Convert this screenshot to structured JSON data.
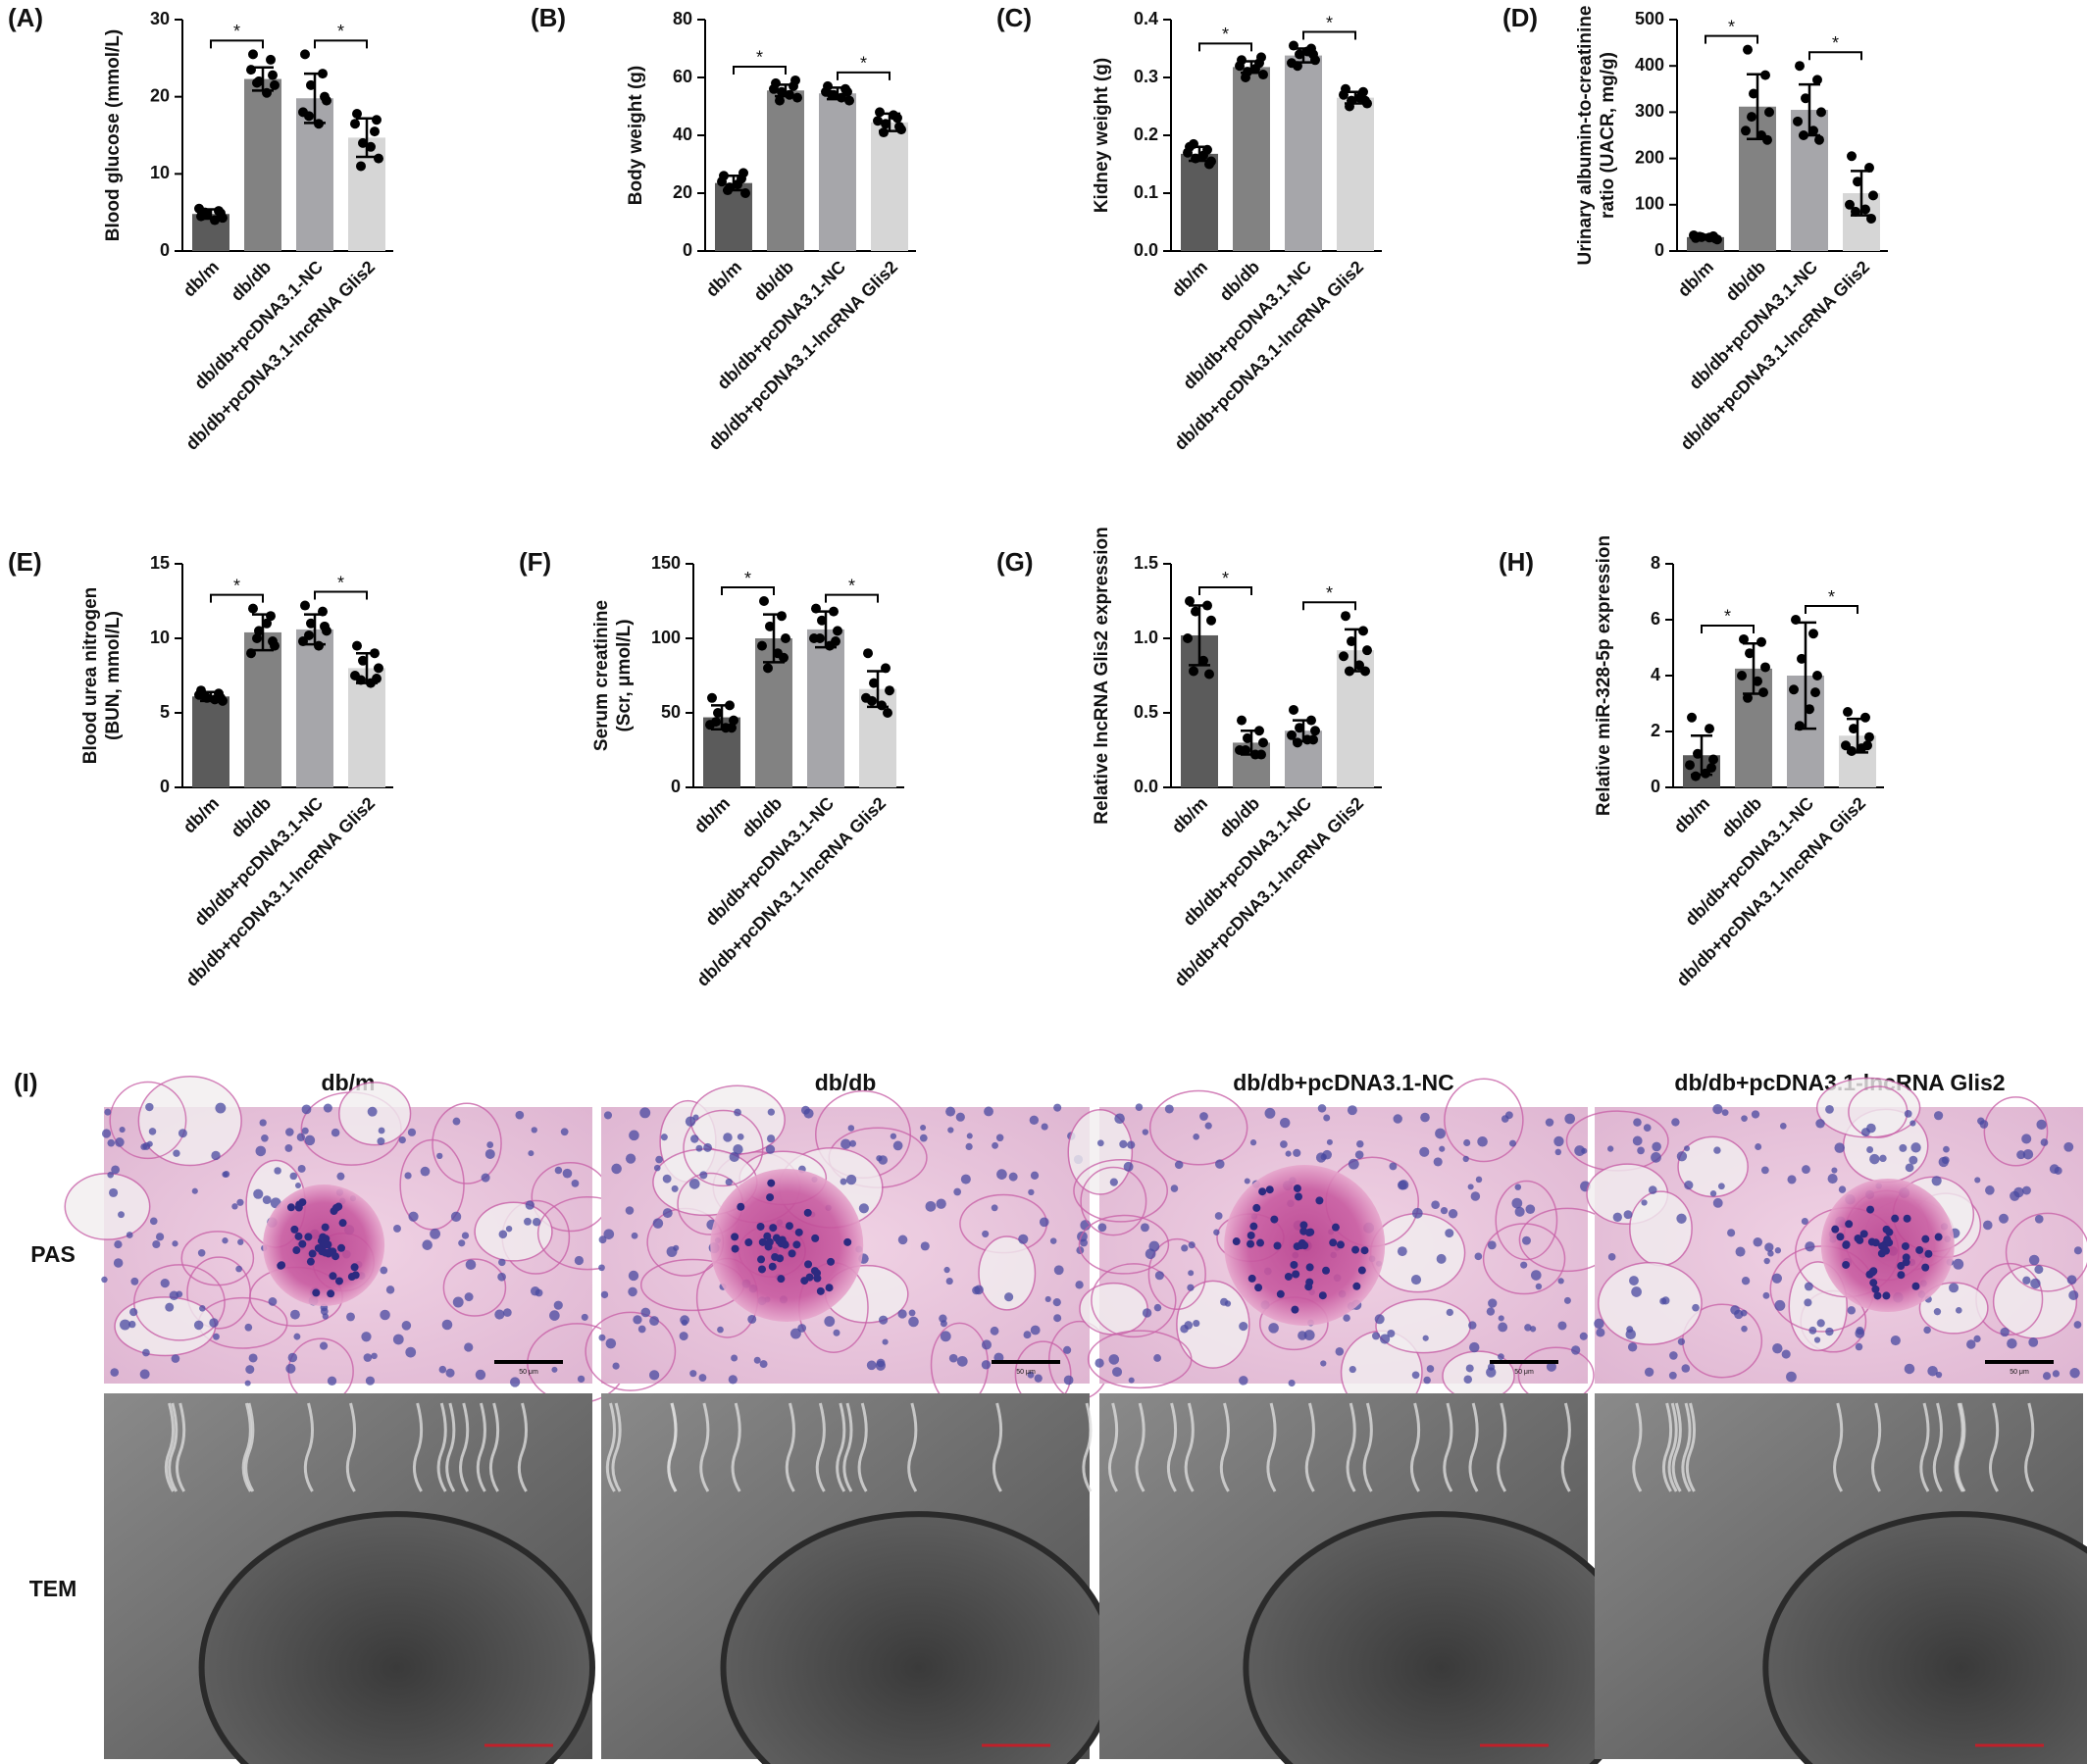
{
  "chart_data": [
    {
      "type": "bar",
      "panel": "(A)",
      "y_label": [
        "Blood glucose (mmol/L)"
      ],
      "categories": [
        "db/m",
        "db/db",
        "db/db+pcDNA3.1-NC",
        "db/db+pcDNA3.1-lncRNA Glis2"
      ],
      "colors": [
        "#5b5b5b",
        "#828282",
        "#a6a6aa",
        "#d6d6d6"
      ],
      "values": [
        4.8,
        22.3,
        19.8,
        14.7
      ],
      "errors": [
        0.6,
        1.5,
        3.2,
        2.5
      ],
      "points": [
        [
          4.5,
          5.2,
          4.8,
          4.3,
          5.5,
          4.0,
          5.0,
          4.9
        ],
        [
          25.5,
          24.8,
          22.0,
          21.5,
          23.5,
          20.5,
          21.8,
          22.8
        ],
        [
          25.5,
          23.0,
          21.5,
          19.5,
          18.0,
          16.5,
          17.5,
          20.0
        ],
        [
          17.8,
          15.5,
          14.0,
          12.0,
          16.5,
          13.5,
          11.0,
          17.0
        ]
      ],
      "significance": [
        "*",
        "*"
      ],
      "ylim": [
        0,
        30
      ],
      "yticks": [
        0,
        10,
        20,
        30
      ]
    },
    {
      "type": "bar",
      "panel": "(B)",
      "y_label": [
        "Body weight (g)"
      ],
      "categories": [
        "db/m",
        "db/db",
        "db/db+pcDNA3.1-NC",
        "db/db+pcDNA3.1-lncRNA Glis2"
      ],
      "colors": [
        "#5b5b5b",
        "#828282",
        "#a6a6aa",
        "#d6d6d6"
      ],
      "values": [
        23.5,
        55.5,
        54.5,
        44.5
      ],
      "errors": [
        2.5,
        2,
        2,
        3
      ],
      "points": [
        [
          26,
          25,
          22,
          20,
          24,
          23,
          21,
          27
        ],
        [
          58,
          57,
          55,
          53,
          56,
          54,
          52,
          59
        ],
        [
          57,
          56,
          54,
          52,
          55,
          53,
          54,
          55
        ],
        [
          48,
          46,
          44,
          42,
          45,
          47,
          41,
          43
        ]
      ],
      "significance": [
        "*",
        "*"
      ],
      "ylim": [
        0,
        80
      ],
      "yticks": [
        0,
        20,
        40,
        60,
        80
      ]
    },
    {
      "type": "bar",
      "panel": "(C)",
      "y_label": [
        "Kidney weight (g)"
      ],
      "categories": [
        "db/m",
        "db/db",
        "db/db+pcDNA3.1-NC",
        "db/db+pcDNA3.1-lncRNA Glis2"
      ],
      "colors": [
        "#5b5b5b",
        "#828282",
        "#a6a6aa",
        "#d6d6d6"
      ],
      "values": [
        0.168,
        0.318,
        0.338,
        0.265
      ],
      "errors": [
        0.012,
        0.01,
        0.012,
        0.01
      ],
      "points": [
        [
          0.18,
          0.175,
          0.16,
          0.155,
          0.17,
          0.165,
          0.185,
          0.15
        ],
        [
          0.33,
          0.325,
          0.31,
          0.305,
          0.32,
          0.315,
          0.3,
          0.335
        ],
        [
          0.355,
          0.35,
          0.34,
          0.33,
          0.325,
          0.345,
          0.32,
          0.34
        ],
        [
          0.28,
          0.275,
          0.26,
          0.255,
          0.27,
          0.265,
          0.25,
          0.26
        ]
      ],
      "significance": [
        "*",
        "*"
      ],
      "ylim": [
        0,
        0.4
      ],
      "yticks": [
        {
          "value": 0,
          "label": "0.0"
        },
        0.1,
        0.2,
        0.3,
        0.4
      ]
    },
    {
      "type": "bar",
      "panel": "(D)",
      "y_label": [
        "Urinary albumin-to-creatinine",
        "ratio (UACR, mg/g)"
      ],
      "categories": [
        "db/m",
        "db/db",
        "db/db+pcDNA3.1-NC",
        "db/db+pcDNA3.1-lncRNA Glis2"
      ],
      "colors": [
        "#5b5b5b",
        "#828282",
        "#a6a6aa",
        "#d6d6d6"
      ],
      "values": [
        30,
        312,
        305,
        125
      ],
      "errors": [
        5,
        70,
        55,
        48
      ],
      "points": [
        [
          28,
          32,
          30,
          25,
          34,
          29,
          31,
          27
        ],
        [
          435,
          380,
          340,
          300,
          260,
          250,
          290,
          240
        ],
        [
          400,
          370,
          330,
          300,
          280,
          260,
          250,
          240
        ],
        [
          205,
          180,
          150,
          120,
          100,
          90,
          85,
          70
        ]
      ],
      "significance": [
        "*",
        "*"
      ],
      "ylim": [
        0,
        500
      ],
      "yticks": [
        0,
        100,
        200,
        300,
        400,
        500
      ]
    },
    {
      "type": "bar",
      "panel": "(E)",
      "y_label": [
        "Blood urea nitrogen",
        "(BUN, mmol/L)"
      ],
      "categories": [
        "db/m",
        "db/db",
        "db/db+pcDNA3.1-NC",
        "db/db+pcDNA3.1-lncRNA Glis2"
      ],
      "colors": [
        "#5b5b5b",
        "#828282",
        "#a6a6aa",
        "#d6d6d6"
      ],
      "values": [
        6.1,
        10.4,
        10.6,
        8.0
      ],
      "errors": [
        0.3,
        1.2,
        1,
        1
      ],
      "points": [
        [
          6.5,
          6.3,
          6.0,
          5.8,
          6.2,
          5.9,
          6.1,
          6.0
        ],
        [
          12.0,
          11.5,
          10.5,
          9.5,
          9.0,
          11.0,
          10.0,
          9.8
        ],
        [
          12.2,
          11.8,
          11.0,
          10.5,
          9.8,
          9.5,
          10.2,
          10.8
        ],
        [
          9.5,
          9.0,
          8.5,
          8.0,
          7.5,
          7.0,
          7.2,
          7.3
        ]
      ],
      "significance": [
        "*",
        "*"
      ],
      "ylim": [
        0,
        15
      ],
      "yticks": [
        0,
        5,
        10,
        15
      ]
    },
    {
      "type": "bar",
      "panel": "(F)",
      "y_label": [
        "Serum creatinine",
        "(Scr, μmol/L)"
      ],
      "categories": [
        "db/m",
        "db/db",
        "db/db+pcDNA3.1-NC",
        "db/db+pcDNA3.1-lncRNA Glis2"
      ],
      "colors": [
        "#5b5b5b",
        "#828282",
        "#a6a6aa",
        "#d6d6d6"
      ],
      "values": [
        47,
        100,
        106,
        66
      ],
      "errors": [
        8,
        16,
        12,
        12
      ],
      "points": [
        [
          60,
          55,
          50,
          45,
          42,
          40,
          44,
          40
        ],
        [
          125,
          115,
          108,
          100,
          95,
          90,
          80,
          87
        ],
        [
          120,
          118,
          112,
          105,
          100,
          95,
          100,
          98
        ],
        [
          90,
          80,
          70,
          65,
          60,
          55,
          58,
          50
        ]
      ],
      "significance": [
        "*",
        "*"
      ],
      "ylim": [
        0,
        150
      ],
      "yticks": [
        0,
        50,
        100,
        150
      ]
    },
    {
      "type": "bar",
      "panel": "(G)",
      "y_label": [
        "Relative lncRNA Glis2 expression"
      ],
      "categories": [
        "db/m",
        "db/db",
        "db/db+pcDNA3.1-NC",
        "db/db+pcDNA3.1-lncRNA Glis2"
      ],
      "colors": [
        "#5b5b5b",
        "#828282",
        "#a6a6aa",
        "#d6d6d6"
      ],
      "values": [
        1.02,
        0.3,
        0.38,
        0.92
      ],
      "errors": [
        0.2,
        0.08,
        0.07,
        0.14
      ],
      "points": [
        [
          1.25,
          1.22,
          1.18,
          1.12,
          1.0,
          0.85,
          0.78,
          0.76
        ],
        [
          0.45,
          0.38,
          0.33,
          0.3,
          0.25,
          0.22,
          0.25,
          0.22
        ],
        [
          0.52,
          0.45,
          0.4,
          0.38,
          0.35,
          0.32,
          0.3,
          0.32
        ],
        [
          1.15,
          1.05,
          0.98,
          0.92,
          0.88,
          0.82,
          0.78,
          0.78
        ]
      ],
      "significance": [
        "*",
        "*"
      ],
      "ylim": [
        0,
        1.5
      ],
      "yticks": [
        {
          "value": 0,
          "label": "0.0"
        },
        0.5,
        {
          "value": 1,
          "label": "1.0"
        },
        1.5
      ]
    },
    {
      "type": "bar",
      "panel": "(H)",
      "y_label": [
        "Relative miR-328-5p expression"
      ],
      "categories": [
        "db/m",
        "db/db",
        "db/db+pcDNA3.1-NC",
        "db/db+pcDNA3.1-lncRNA Glis2"
      ],
      "colors": [
        "#5b5b5b",
        "#828282",
        "#a6a6aa",
        "#d6d6d6"
      ],
      "values": [
        1.15,
        4.25,
        4.0,
        1.85
      ],
      "errors": [
        0.7,
        0.9,
        1.9,
        0.6
      ],
      "points": [
        [
          2.5,
          2.1,
          1.2,
          1.0,
          0.8,
          0.5,
          0.4,
          0.7
        ],
        [
          5.3,
          5.2,
          4.8,
          4.3,
          4.0,
          3.8,
          3.2,
          3.4
        ],
        [
          6.0,
          5.5,
          4.6,
          4.0,
          3.5,
          2.8,
          2.2,
          3.4
        ],
        [
          2.7,
          2.5,
          2.1,
          1.8,
          1.5,
          1.4,
          1.3,
          1.5
        ]
      ],
      "significance": [
        "*",
        "*"
      ],
      "ylim": [
        0,
        8
      ],
      "yticks": [
        0,
        2,
        4,
        6,
        8
      ]
    }
  ],
  "panel_i": {
    "label": "(I)",
    "columns": [
      "db/m",
      "db/db",
      "db/db+pcDNA3.1-NC",
      "db/db+pcDNA3.1-lncRNA Glis2"
    ],
    "rows": [
      "PAS",
      "TEM"
    ],
    "scale_bar": "50 μm"
  }
}
